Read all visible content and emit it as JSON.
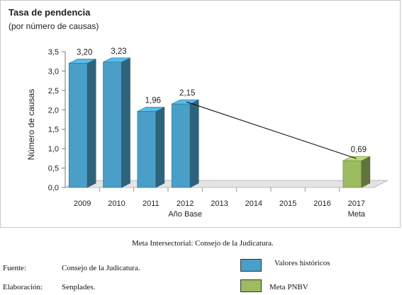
{
  "chart_data": {
    "type": "bar",
    "title": "Tasa de pendencia",
    "subtitle": "(por número de causas)",
    "ylabel": "Número de causas",
    "ylim": [
      0,
      3.5
    ],
    "yticks": [
      "0,0",
      "0,5",
      "1,0",
      "1,5",
      "2,0",
      "2,5",
      "3,0",
      "3,5"
    ],
    "ytick_values": [
      0,
      0.5,
      1.0,
      1.5,
      2.0,
      2.5,
      3.0,
      3.5
    ],
    "categories": [
      "2009",
      "2010",
      "2011",
      "2012",
      "2013",
      "2014",
      "2015",
      "2016",
      "2017"
    ],
    "category_sublabels": [
      "",
      "",
      "",
      "Año Base",
      "",
      "",
      "",
      "",
      "Meta"
    ],
    "series": [
      {
        "name": "Valores históricos",
        "color": "#4a9fc8",
        "values": [
          3.2,
          3.23,
          1.96,
          2.15,
          null,
          null,
          null,
          null,
          null
        ],
        "labels": [
          "3,20",
          "3,23",
          "1,96",
          "2,15",
          "",
          "",
          "",
          "",
          ""
        ]
      },
      {
        "name": "Meta PNBV",
        "color": "#9dbb61",
        "values": [
          null,
          null,
          null,
          null,
          null,
          null,
          null,
          null,
          0.69
        ],
        "labels": [
          "",
          "",
          "",
          "",
          "",
          "",
          "",
          "",
          "0,69"
        ]
      }
    ],
    "trend_line": {
      "from_category": "2012",
      "to_category": "2017",
      "from_value": 2.15,
      "to_value": 0.69
    },
    "grid": false,
    "legend": "bottom-right"
  },
  "caption": "Meta Intersectorial: Consejo de la Judicatura.",
  "footer": {
    "fuente_label": "Fuente:",
    "fuente_value": "Consejo de la Judicatura.",
    "elaboracion_label": "Elaboración:",
    "elaboracion_value": "Senplades."
  },
  "legend": {
    "items": [
      {
        "label": "Valores históricos",
        "color": "#4a9fc8"
      },
      {
        "label": "Meta PNBV",
        "color": "#9dbb61"
      }
    ]
  }
}
